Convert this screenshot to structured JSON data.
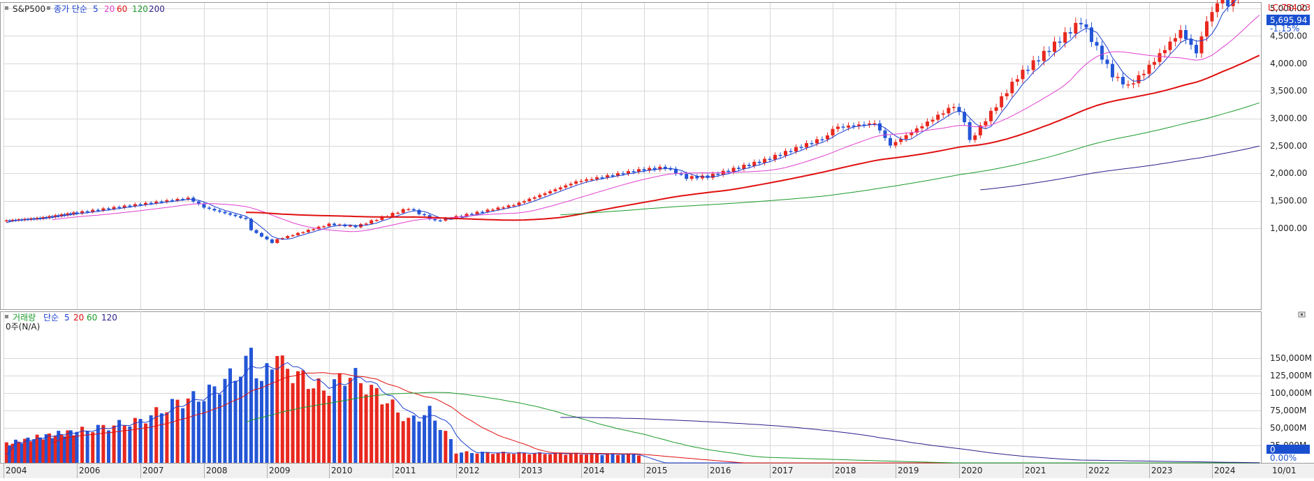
{
  "colors": {
    "up": "#e8281e",
    "down": "#2456d6",
    "ma5": "#1a3fd0",
    "ma20": "#e040d0",
    "ma60": "#e01010",
    "ma120": "#1a9a2a",
    "ma200": "#2a1f8a",
    "grid": "#d8d8d8",
    "lc_label": "#e01010",
    "price_badge": "#1a4fd0"
  },
  "price_panel": {
    "legend": {
      "symbol": "S&P500",
      "prefix": "종가 단순",
      "periods": [
        "5",
        "20",
        "60",
        "120",
        "200"
      ]
    },
    "lc_label": "LC:754.23",
    "current_price_label": "5,695.94",
    "change_label": "-1.15%",
    "y_ticks": [
      "5,000.00",
      "4,500.00",
      "4,000.00",
      "3,500.00",
      "3,000.00",
      "2,500.00",
      "2,000.00",
      "1,500.00",
      "1,000.00"
    ]
  },
  "volume_panel": {
    "legend": {
      "name": "거래량",
      "prefix": "단순",
      "periods": [
        "5",
        "20",
        "60",
        "120"
      ]
    },
    "sub_label": "0주(N/A)",
    "y_ticks": [
      "150,000M",
      "125,000M",
      "100,000M",
      "75,000M",
      "50,000M",
      "25,000M"
    ],
    "current_value_label": "0",
    "current_pct_label": "0.00%"
  },
  "x_axis": {
    "labels": [
      "2004",
      "2006",
      "2007",
      "2008",
      "2009",
      "2010",
      "2011",
      "2012",
      "2013",
      "2014",
      "2015",
      "2016",
      "2017",
      "2018",
      "2019",
      "2020",
      "2021",
      "2022",
      "2023",
      "2024"
    ],
    "end_label": "10/01"
  },
  "chart_data": [
    {
      "type": "candlestick",
      "title": "S&P500",
      "interval": "monthly",
      "ylim": [
        600,
        5800
      ],
      "last_close": 5695.94,
      "change_percent": -1.15,
      "series_anchor_points": [
        {
          "date": "2003-10",
          "close": 1050
        },
        {
          "date": "2004-01",
          "close": 1131
        },
        {
          "date": "2005-01",
          "close": 1181
        },
        {
          "date": "2006-01",
          "close": 1280
        },
        {
          "date": "2007-01",
          "close": 1438
        },
        {
          "date": "2007-10",
          "close": 1549
        },
        {
          "date": "2008-01",
          "close": 1378
        },
        {
          "date": "2008-09",
          "close": 1166
        },
        {
          "date": "2008-10",
          "close": 968
        },
        {
          "date": "2009-02",
          "close": 735
        },
        {
          "date": "2009-03",
          "close": 797
        },
        {
          "date": "2010-01",
          "close": 1073
        },
        {
          "date": "2010-06",
          "close": 1030
        },
        {
          "date": "2011-04",
          "close": 1363
        },
        {
          "date": "2011-09",
          "close": 1131
        },
        {
          "date": "2012-12",
          "close": 1426
        },
        {
          "date": "2013-12",
          "close": 1848
        },
        {
          "date": "2014-12",
          "close": 2058
        },
        {
          "date": "2015-05",
          "close": 2107
        },
        {
          "date": "2015-09",
          "close": 1920
        },
        {
          "date": "2016-01",
          "close": 1940
        },
        {
          "date": "2016-12",
          "close": 2238
        },
        {
          "date": "2017-12",
          "close": 2673
        },
        {
          "date": "2018-01",
          "close": 2823
        },
        {
          "date": "2018-09",
          "close": 2913
        },
        {
          "date": "2018-12",
          "close": 2506
        },
        {
          "date": "2019-12",
          "close": 3230
        },
        {
          "date": "2020-02",
          "close": 2954
        },
        {
          "date": "2020-03",
          "close": 2584
        },
        {
          "date": "2020-12",
          "close": 3756
        },
        {
          "date": "2021-12",
          "close": 4766
        },
        {
          "date": "2022-06",
          "close": 3785
        },
        {
          "date": "2022-09",
          "close": 3585
        },
        {
          "date": "2022-12",
          "close": 3839
        },
        {
          "date": "2023-07",
          "close": 4588
        },
        {
          "date": "2023-10",
          "close": 4193
        },
        {
          "date": "2023-12",
          "close": 4770
        },
        {
          "date": "2024-03",
          "close": 5254
        },
        {
          "date": "2024-04",
          "close": 5035
        },
        {
          "date": "2024-07",
          "close": 5522
        },
        {
          "date": "2024-09",
          "close": 5762
        },
        {
          "date": "2024-10",
          "close": 5696
        }
      ],
      "moving_averages": [
        {
          "name": "5",
          "period": 5
        },
        {
          "name": "20",
          "period": 20
        },
        {
          "name": "60",
          "period": 60
        },
        {
          "name": "120",
          "period": 120
        },
        {
          "name": "200",
          "period": 200
        }
      ]
    },
    {
      "type": "bar",
      "title": "거래량",
      "unit": "M",
      "ylim": [
        0,
        170000
      ],
      "values_by_period": [
        {
          "date": "2004-01",
          "value": 26000
        },
        {
          "date": "2005-01",
          "value": 37000
        },
        {
          "date": "2006-01",
          "value": 45000
        },
        {
          "date": "2007-01",
          "value": 60000
        },
        {
          "date": "2007-08",
          "value": 87000
        },
        {
          "date": "2008-01",
          "value": 96000
        },
        {
          "date": "2008-09",
          "value": 138000
        },
        {
          "date": "2008-10",
          "value": 162000
        },
        {
          "date": "2008-12",
          "value": 113000
        },
        {
          "date": "2009-03",
          "value": 163000
        },
        {
          "date": "2009-04",
          "value": 138000
        },
        {
          "date": "2009-12",
          "value": 104000
        },
        {
          "date": "2010-05",
          "value": 127000
        },
        {
          "date": "2010-12",
          "value": 88000
        },
        {
          "date": "2011-04",
          "value": 60000
        },
        {
          "date": "2011-08",
          "value": 73000
        },
        {
          "date": "2011-12",
          "value": 32000
        },
        {
          "date": "2012-01",
          "value": 15000
        },
        {
          "date": "2014-12",
          "value": 12000
        },
        {
          "date": "2015-01",
          "value": 0
        },
        {
          "date": "2024-10",
          "value": 0
        }
      ],
      "moving_averages": [
        {
          "name": "5",
          "period": 5
        },
        {
          "name": "20",
          "period": 20
        },
        {
          "name": "60",
          "period": 60
        },
        {
          "name": "120",
          "period": 120
        }
      ]
    }
  ]
}
